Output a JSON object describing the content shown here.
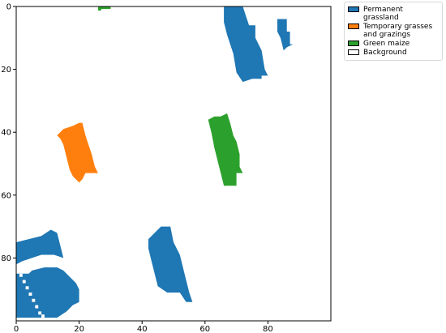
{
  "chart_data": {
    "type": "heatmap",
    "title": "",
    "xlabel": "",
    "ylabel": "",
    "xlim": [
      0,
      100
    ],
    "ylim": [
      100,
      0
    ],
    "x_ticks": [
      0,
      20,
      40,
      60,
      80
    ],
    "y_ticks": [
      0,
      20,
      40,
      60,
      80
    ],
    "grid": false,
    "legend_position": "outside-top-right",
    "classes": [
      {
        "name": "Permanent grassland",
        "color": "#1f77b4"
      },
      {
        "name": "Temporary grasses and grazings",
        "color": "#ff7f0e"
      },
      {
        "name": "Green maize",
        "color": "#2ca02c"
      },
      {
        "name": "Background",
        "color": "#ffffff"
      }
    ],
    "patches": [
      {
        "class": "Permanent grassland",
        "polygon": [
          [
            66,
            0
          ],
          [
            72,
            0
          ],
          [
            74,
            6
          ],
          [
            76,
            6
          ],
          [
            76,
            10
          ],
          [
            78,
            14
          ],
          [
            79,
            20
          ],
          [
            80,
            22
          ],
          [
            78,
            22
          ],
          [
            78,
            23
          ],
          [
            75,
            23
          ],
          [
            72,
            24
          ],
          [
            70,
            21
          ],
          [
            69,
            15
          ],
          [
            67,
            9
          ],
          [
            66,
            5
          ]
        ]
      },
      {
        "class": "Permanent grassland",
        "polygon": [
          [
            83,
            4
          ],
          [
            86,
            4
          ],
          [
            86,
            8
          ],
          [
            87,
            8
          ],
          [
            87,
            12
          ],
          [
            88,
            12
          ],
          [
            86,
            13
          ],
          [
            85,
            14
          ],
          [
            84,
            10
          ],
          [
            83,
            8
          ]
        ]
      },
      {
        "class": "Permanent grassland",
        "polygon": [
          [
            0,
            75
          ],
          [
            8,
            73
          ],
          [
            11,
            71
          ],
          [
            13,
            72
          ],
          [
            14,
            76
          ],
          [
            15,
            80
          ],
          [
            12,
            79
          ],
          [
            8,
            79
          ],
          [
            5,
            80
          ],
          [
            2,
            81
          ],
          [
            0,
            82
          ]
        ]
      },
      {
        "class": "Permanent grassland",
        "polygon": [
          [
            0,
            85
          ],
          [
            4,
            85
          ],
          [
            5,
            84
          ],
          [
            9,
            83
          ],
          [
            13,
            83
          ],
          [
            15,
            84
          ],
          [
            17,
            86
          ],
          [
            19,
            88
          ],
          [
            20,
            90
          ],
          [
            20,
            94
          ],
          [
            18,
            95
          ],
          [
            16,
            97
          ],
          [
            13,
            99
          ],
          [
            0,
            99
          ]
        ]
      },
      {
        "class": "Permanent grassland",
        "polygon": [
          [
            42,
            74
          ],
          [
            44,
            72
          ],
          [
            46,
            70
          ],
          [
            49,
            70
          ],
          [
            50,
            75
          ],
          [
            52,
            79
          ],
          [
            53,
            83
          ],
          [
            54,
            87
          ],
          [
            55,
            91
          ],
          [
            56,
            94
          ],
          [
            54,
            94
          ],
          [
            52,
            91
          ],
          [
            48,
            91
          ],
          [
            45,
            89
          ],
          [
            44,
            85
          ],
          [
            43,
            81
          ],
          [
            42,
            77
          ]
        ]
      },
      {
        "class": "Temporary grasses and grazings",
        "polygon": [
          [
            13,
            41
          ],
          [
            15,
            39
          ],
          [
            18,
            38
          ],
          [
            20,
            37
          ],
          [
            21,
            37
          ],
          [
            22,
            41
          ],
          [
            23,
            44
          ],
          [
            24,
            47
          ],
          [
            25,
            51
          ],
          [
            26,
            53
          ],
          [
            22,
            53
          ],
          [
            21,
            55
          ],
          [
            20,
            56
          ],
          [
            18,
            54
          ],
          [
            17,
            52
          ],
          [
            16,
            48
          ],
          [
            15,
            44
          ],
          [
            14,
            42
          ]
        ]
      },
      {
        "class": "Green maize",
        "polygon": [
          [
            61,
            36
          ],
          [
            63,
            35
          ],
          [
            65,
            35
          ],
          [
            67,
            34
          ],
          [
            68,
            37
          ],
          [
            69,
            41
          ],
          [
            70,
            43
          ],
          [
            71,
            47
          ],
          [
            71,
            51
          ],
          [
            72,
            53
          ],
          [
            70,
            53
          ],
          [
            70,
            57
          ],
          [
            66,
            57
          ],
          [
            65,
            53
          ],
          [
            64,
            49
          ],
          [
            63,
            45
          ],
          [
            62,
            40
          ]
        ]
      },
      {
        "class": "Green maize",
        "polygon": [
          [
            26,
            0
          ],
          [
            30,
            0
          ],
          [
            30,
            0.8
          ],
          [
            27,
            0.8
          ],
          [
            27,
            1.3
          ],
          [
            26,
            1.3
          ]
        ]
      }
    ],
    "background_gaps": [
      [
        1,
        85
      ],
      [
        2,
        87
      ],
      [
        3,
        89
      ],
      [
        4,
        91
      ],
      [
        5,
        93
      ],
      [
        6,
        95
      ],
      [
        7,
        97
      ],
      [
        8,
        98
      ]
    ]
  }
}
